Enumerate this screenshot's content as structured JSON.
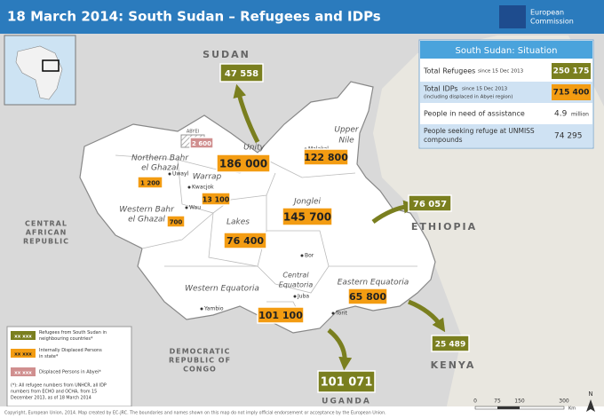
{
  "header": {
    "title": "18 March 2014: South Sudan – Refugees and IDPs",
    "logo": [
      "European",
      "Commission"
    ]
  },
  "countries": {
    "sudan": "SUDAN",
    "ethiopia": "ETHIOPIA",
    "kenya": "KENYA",
    "uganda": "UGANDA",
    "car": [
      "CENTRAL",
      "AFRICAN",
      "REPUBLIC"
    ],
    "drc": [
      "DEMOCRATIC",
      "REPUBLIC OF",
      "CONGO"
    ]
  },
  "states": {
    "unity": "Unity",
    "upper_nile": [
      "Upper",
      "Nile"
    ],
    "nbeg": [
      "Northern Bahr",
      "el Ghazal"
    ],
    "warrap": "Warrap",
    "wbeg": [
      "Western Bahr",
      "el Ghazal"
    ],
    "lakes": "Lakes",
    "jonglei": "Jonglei",
    "central_eq": [
      "Central",
      "Equatoria"
    ],
    "western_eq": "Western Equatoria",
    "eastern_eq": "Eastern Equatoria",
    "abyei": "ABYEI"
  },
  "towns": {
    "malakal": "Malakal",
    "uwayl": "Uwayl",
    "kwacjok": "Kwacjok",
    "wau": "Wau",
    "bor": "Bor",
    "juba": "Juba",
    "torit": "Torit",
    "yambio": "Yambio"
  },
  "refugees": {
    "sudan": "47 558",
    "ethiopia": "76 057",
    "kenya": "25 489",
    "uganda": "101 071"
  },
  "idps": {
    "unity": "186 000",
    "upper_nile": "122 800",
    "jonglei": "145 700",
    "lakes": "76 400",
    "central_eq": "101 100",
    "eastern_eq": "65 800",
    "warrap": "13 100",
    "nbeg": "1 200",
    "wbeg": "700",
    "abyei": "2 600"
  },
  "situation": {
    "title": "South Sudan: Situation",
    "rows": [
      {
        "label": "Total Refugees",
        "note": "since 15 Dec 2013",
        "value": "250 175"
      },
      {
        "label": "Total IDPs",
        "note": "since 15 Dec 2013",
        "note2": "(including displaced in Abyei region)",
        "value": "715 400"
      },
      {
        "label": "People in need of assistance",
        "value": "4.9",
        "unit": "million"
      },
      {
        "label": "People seeking refuge at UNMISS",
        "label2": "compounds",
        "value": "74 295"
      }
    ]
  },
  "legend": {
    "items": [
      {
        "sample": "xx xxx",
        "text": [
          "Refugees from South Sudan in",
          "neighbouring countries*"
        ]
      },
      {
        "sample": "xx xxx",
        "text": [
          "Internally Displaced Persons",
          "in state*"
        ]
      },
      {
        "sample": "xx xxx",
        "text": [
          "Displaced Persons in Abyei*"
        ]
      }
    ],
    "footnote": [
      "(*): All refugee numbers from UNHCR, all IDP",
      "numbers from ECHO and OCHA, from 15",
      "December 2013, as of 18 March 2014"
    ]
  },
  "scale": {
    "ticks": [
      "0",
      "75",
      "150",
      "300"
    ],
    "unit": "Km",
    "north": "N"
  },
  "footer": "Copyright, European Union, 2014. Map created by EC-JRC. The boundaries and names shown on this map do not imply official endorsement or acceptance by the European Union."
}
